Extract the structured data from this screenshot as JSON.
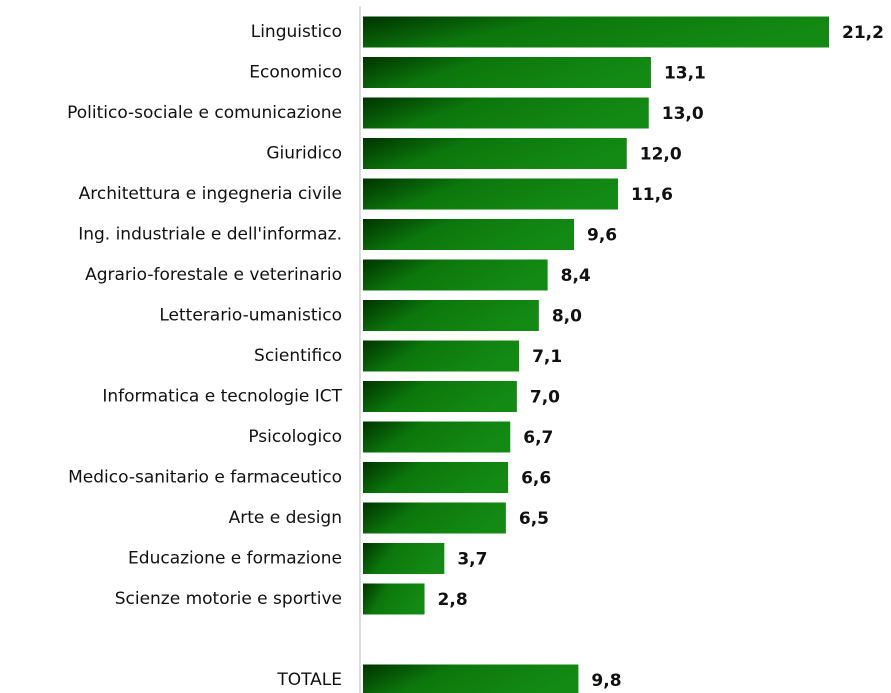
{
  "chart_data": {
    "type": "bar",
    "orientation": "horizontal",
    "categories": [
      "Linguistico",
      "Economico",
      "Politico-sociale e comunicazione",
      "Giuridico",
      "Architettura e ingegneria civile",
      "Ing. industriale e dell'informaz.",
      "Agrario-forestale e veterinario",
      "Letterario-umanistico",
      "Scientifico",
      "Informatica e tecnologie ICT",
      "Psicologico",
      "Medico-sanitario e farmaceutico",
      "Arte e design",
      "Educazione e formazione",
      "Scienze motorie e sportive",
      null,
      "TOTALE"
    ],
    "values": [
      21.2,
      13.1,
      13.0,
      12.0,
      11.6,
      9.6,
      8.4,
      8.0,
      7.1,
      7.0,
      6.7,
      6.6,
      6.5,
      3.7,
      2.8,
      null,
      9.8
    ],
    "value_labels": [
      "21,2",
      "13,1",
      "13,0",
      "12,0",
      "11,6",
      "9,6",
      "8,4",
      "8,0",
      "7,1",
      "7,0",
      "6,7",
      "6,6",
      "6,5",
      "3,7",
      "2,8",
      null,
      "9,8"
    ],
    "color": "#138a13"
  }
}
